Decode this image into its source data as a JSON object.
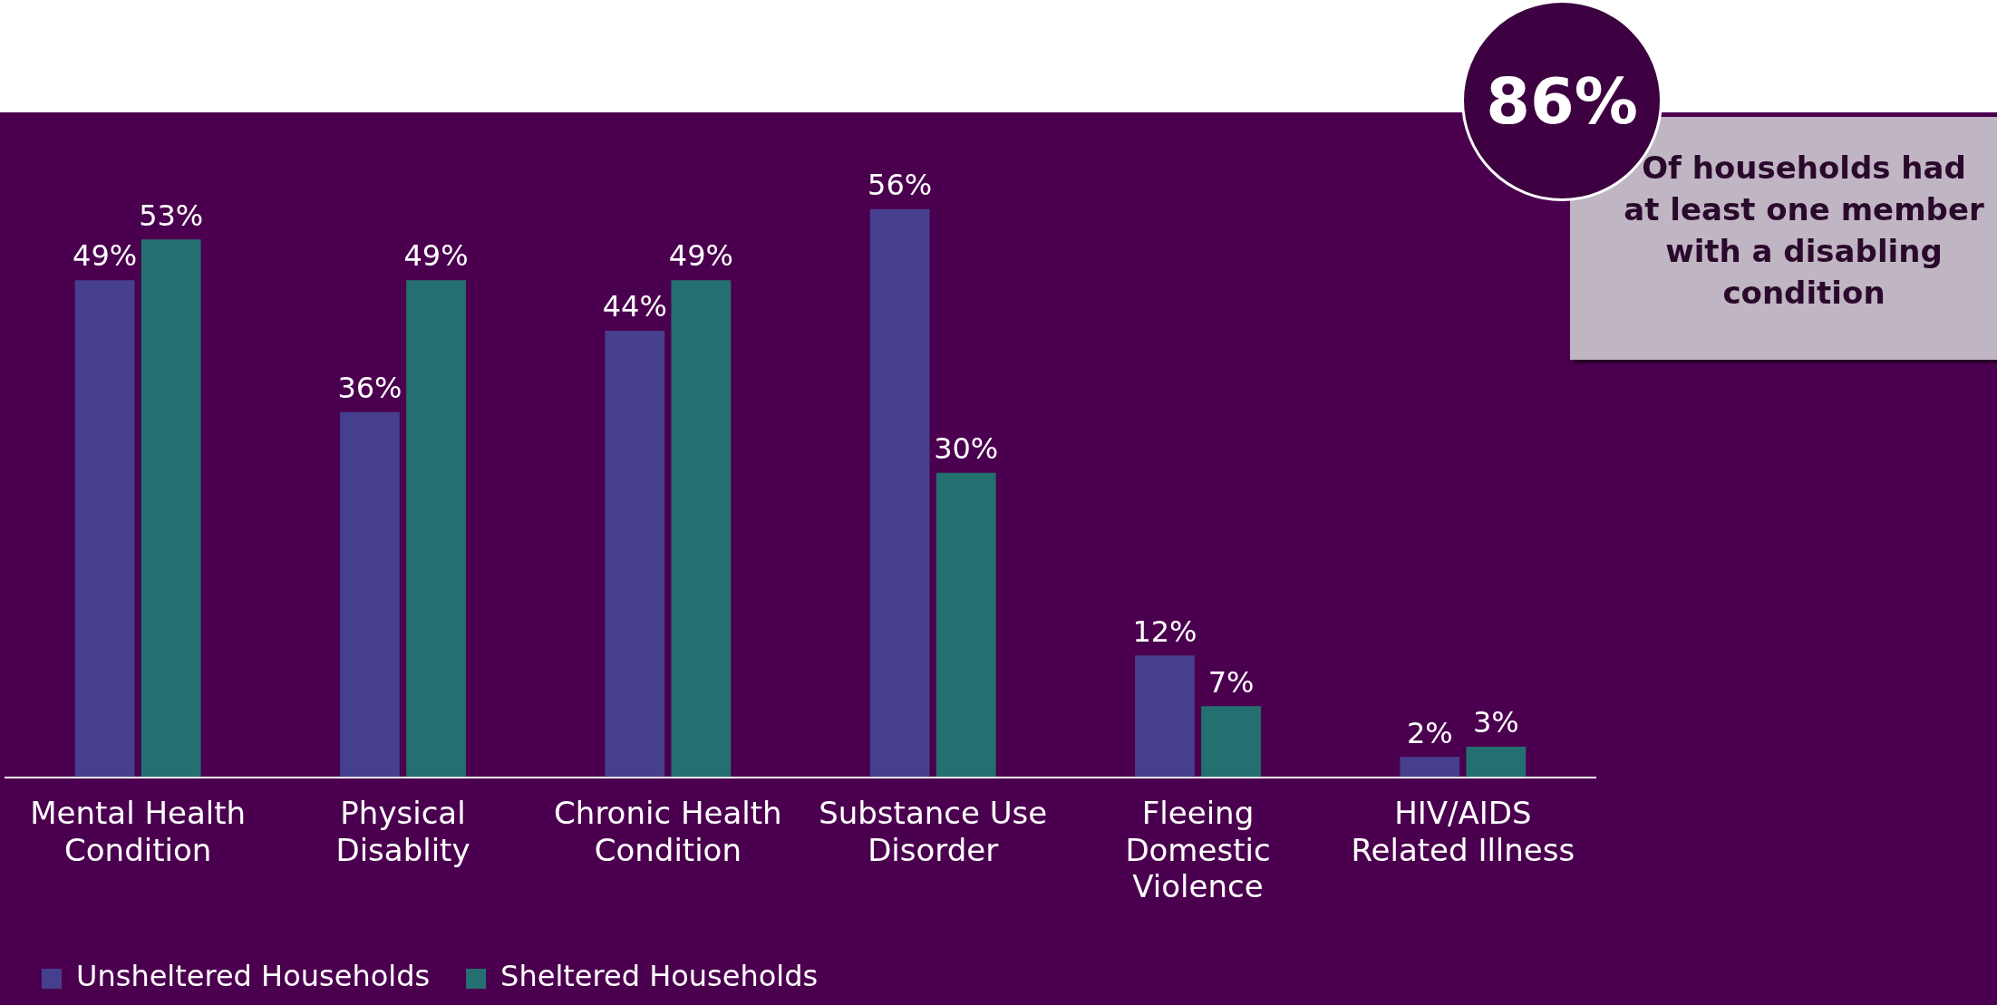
{
  "chart_data": {
    "type": "bar",
    "categories": [
      "Mental Health Condition",
      "Physical Disablity",
      "Chronic Health Condition",
      "Substance Use Disorder",
      "Fleeing Domestic Violence",
      "HIV/AIDS Related Illness"
    ],
    "series": [
      {
        "name": "Unsheltered Households",
        "color": "#463f8e",
        "values": [
          49,
          36,
          44,
          56,
          12,
          2
        ],
        "value_labels": [
          "49%",
          "36%",
          "44%",
          "56%",
          "12%",
          "2%"
        ]
      },
      {
        "name": "Sheltered Households",
        "color": "#247070",
        "values": [
          53,
          49,
          49,
          30,
          7,
          3
        ],
        "value_labels": [
          "53%",
          "49%",
          "49%",
          "30%",
          "7%",
          "3%"
        ]
      }
    ],
    "tick_labels": "x",
    "grid": false,
    "legend": "bottom",
    "annotations": [
      "86%",
      "Of households had at least one member with a disabling condition"
    ]
  }
}
